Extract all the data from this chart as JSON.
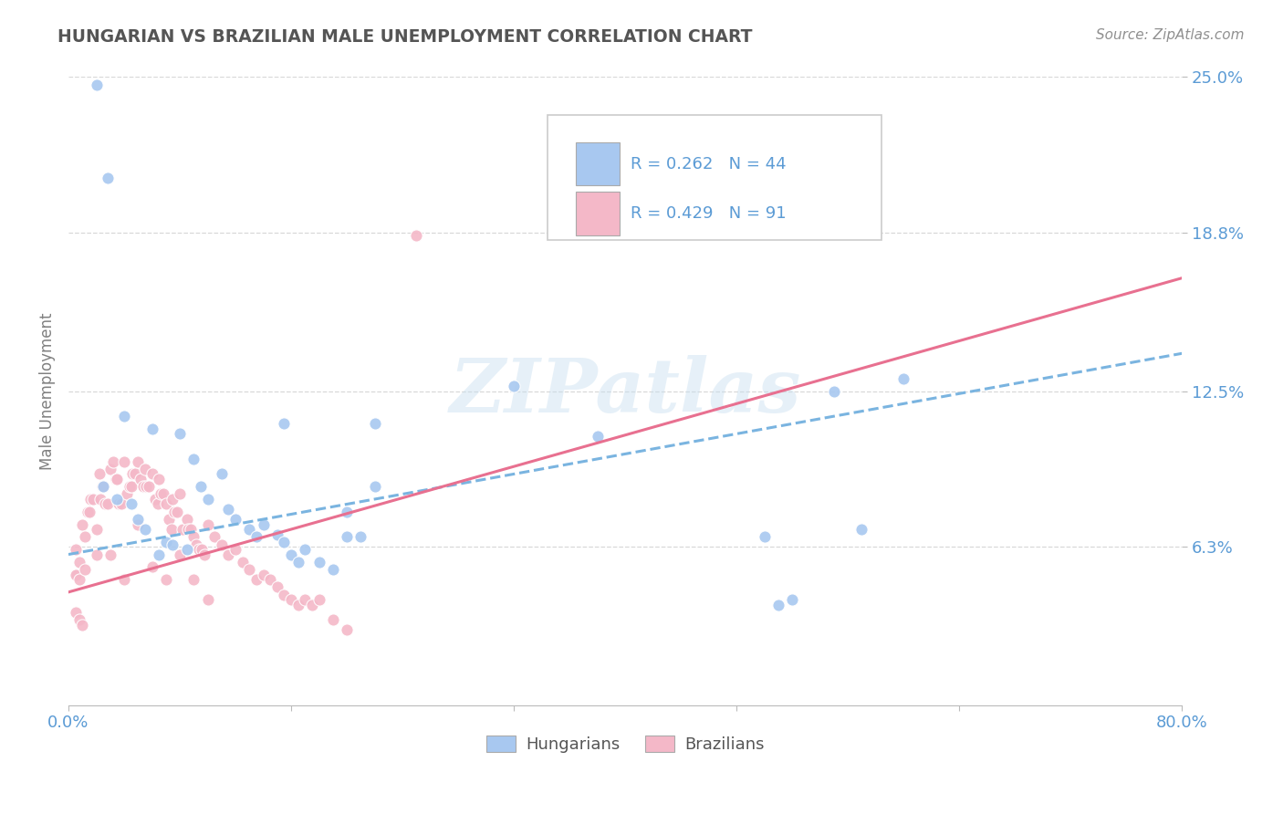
{
  "title": "HUNGARIAN VS BRAZILIAN MALE UNEMPLOYMENT CORRELATION CHART",
  "source": "Source: ZipAtlas.com",
  "ylabel": "Male Unemployment",
  "xlim": [
    0.0,
    0.8
  ],
  "ylim": [
    0.0,
    0.25
  ],
  "ytick_vals": [
    0.063,
    0.125,
    0.188,
    0.25
  ],
  "ytick_labels": [
    "6.3%",
    "12.5%",
    "18.8%",
    "25.0%"
  ],
  "xtick_vals": [
    0.0,
    0.16,
    0.32,
    0.48,
    0.64,
    0.8
  ],
  "xtick_labels": [
    "0.0%",
    "",
    "",
    "",
    "",
    "80.0%"
  ],
  "hungarian_color": "#a8c8f0",
  "hungarian_edge": "#7aabdd",
  "brazilian_color": "#f4b8c8",
  "brazilian_edge": "#e8809a",
  "hungarian_R": 0.262,
  "hungarian_N": 44,
  "brazilian_R": 0.429,
  "brazilian_N": 91,
  "watermark": "ZIPatlas",
  "background_color": "#ffffff",
  "grid_color": "#d8d8d8",
  "tick_label_color": "#5b9bd5",
  "title_color": "#555555",
  "legend_box_color": "#eeeeee",
  "hungarian_trend_x": [
    0.0,
    0.8
  ],
  "hungarian_trend_y": [
    0.06,
    0.14
  ],
  "brazilian_trend_x": [
    0.0,
    0.8
  ],
  "brazilian_trend_y": [
    0.045,
    0.17
  ],
  "hungarian_scatter": [
    [
      0.02,
      0.247
    ],
    [
      0.028,
      0.21
    ],
    [
      0.04,
      0.115
    ],
    [
      0.06,
      0.11
    ],
    [
      0.08,
      0.108
    ],
    [
      0.09,
      0.098
    ],
    [
      0.095,
      0.087
    ],
    [
      0.1,
      0.082
    ],
    [
      0.11,
      0.092
    ],
    [
      0.115,
      0.078
    ],
    [
      0.12,
      0.074
    ],
    [
      0.13,
      0.07
    ],
    [
      0.135,
      0.067
    ],
    [
      0.14,
      0.072
    ],
    [
      0.15,
      0.068
    ],
    [
      0.155,
      0.065
    ],
    [
      0.155,
      0.112
    ],
    [
      0.16,
      0.06
    ],
    [
      0.165,
      0.057
    ],
    [
      0.17,
      0.062
    ],
    [
      0.18,
      0.057
    ],
    [
      0.19,
      0.054
    ],
    [
      0.2,
      0.077
    ],
    [
      0.2,
      0.067
    ],
    [
      0.21,
      0.067
    ],
    [
      0.22,
      0.112
    ],
    [
      0.22,
      0.087
    ],
    [
      0.025,
      0.087
    ],
    [
      0.035,
      0.082
    ],
    [
      0.045,
      0.08
    ],
    [
      0.05,
      0.074
    ],
    [
      0.055,
      0.07
    ],
    [
      0.065,
      0.06
    ],
    [
      0.07,
      0.065
    ],
    [
      0.075,
      0.064
    ],
    [
      0.085,
      0.062
    ],
    [
      0.32,
      0.127
    ],
    [
      0.38,
      0.107
    ],
    [
      0.5,
      0.067
    ],
    [
      0.51,
      0.04
    ],
    [
      0.52,
      0.042
    ],
    [
      0.55,
      0.125
    ],
    [
      0.57,
      0.07
    ],
    [
      0.6,
      0.13
    ]
  ],
  "brazilian_scatter": [
    [
      0.005,
      0.062
    ],
    [
      0.006,
      0.052
    ],
    [
      0.008,
      0.057
    ],
    [
      0.01,
      0.072
    ],
    [
      0.012,
      0.067
    ],
    [
      0.014,
      0.077
    ],
    [
      0.015,
      0.077
    ],
    [
      0.016,
      0.082
    ],
    [
      0.018,
      0.082
    ],
    [
      0.02,
      0.07
    ],
    [
      0.02,
      0.06
    ],
    [
      0.022,
      0.092
    ],
    [
      0.023,
      0.082
    ],
    [
      0.024,
      0.087
    ],
    [
      0.025,
      0.087
    ],
    [
      0.026,
      0.08
    ],
    [
      0.028,
      0.08
    ],
    [
      0.03,
      0.094
    ],
    [
      0.03,
      0.06
    ],
    [
      0.032,
      0.097
    ],
    [
      0.034,
      0.09
    ],
    [
      0.035,
      0.09
    ],
    [
      0.036,
      0.08
    ],
    [
      0.038,
      0.08
    ],
    [
      0.04,
      0.097
    ],
    [
      0.04,
      0.05
    ],
    [
      0.042,
      0.084
    ],
    [
      0.044,
      0.087
    ],
    [
      0.045,
      0.087
    ],
    [
      0.046,
      0.092
    ],
    [
      0.048,
      0.092
    ],
    [
      0.05,
      0.097
    ],
    [
      0.05,
      0.072
    ],
    [
      0.052,
      0.09
    ],
    [
      0.054,
      0.087
    ],
    [
      0.055,
      0.094
    ],
    [
      0.056,
      0.087
    ],
    [
      0.058,
      0.087
    ],
    [
      0.06,
      0.092
    ],
    [
      0.06,
      0.055
    ],
    [
      0.062,
      0.082
    ],
    [
      0.064,
      0.08
    ],
    [
      0.065,
      0.09
    ],
    [
      0.066,
      0.084
    ],
    [
      0.068,
      0.084
    ],
    [
      0.07,
      0.08
    ],
    [
      0.07,
      0.05
    ],
    [
      0.072,
      0.074
    ],
    [
      0.074,
      0.07
    ],
    [
      0.075,
      0.082
    ],
    [
      0.076,
      0.077
    ],
    [
      0.078,
      0.077
    ],
    [
      0.08,
      0.084
    ],
    [
      0.08,
      0.06
    ],
    [
      0.082,
      0.07
    ],
    [
      0.085,
      0.074
    ],
    [
      0.086,
      0.07
    ],
    [
      0.088,
      0.07
    ],
    [
      0.09,
      0.067
    ],
    [
      0.09,
      0.05
    ],
    [
      0.092,
      0.064
    ],
    [
      0.094,
      0.062
    ],
    [
      0.096,
      0.062
    ],
    [
      0.098,
      0.06
    ],
    [
      0.1,
      0.072
    ],
    [
      0.1,
      0.042
    ],
    [
      0.105,
      0.067
    ],
    [
      0.11,
      0.064
    ],
    [
      0.115,
      0.06
    ],
    [
      0.12,
      0.062
    ],
    [
      0.125,
      0.057
    ],
    [
      0.13,
      0.054
    ],
    [
      0.135,
      0.05
    ],
    [
      0.14,
      0.052
    ],
    [
      0.145,
      0.05
    ],
    [
      0.15,
      0.047
    ],
    [
      0.155,
      0.044
    ],
    [
      0.16,
      0.042
    ],
    [
      0.165,
      0.04
    ],
    [
      0.17,
      0.042
    ],
    [
      0.175,
      0.04
    ],
    [
      0.18,
      0.042
    ],
    [
      0.19,
      0.034
    ],
    [
      0.2,
      0.03
    ],
    [
      0.005,
      0.037
    ],
    [
      0.008,
      0.034
    ],
    [
      0.01,
      0.032
    ],
    [
      0.25,
      0.187
    ],
    [
      0.005,
      0.052
    ],
    [
      0.008,
      0.05
    ],
    [
      0.012,
      0.054
    ]
  ]
}
